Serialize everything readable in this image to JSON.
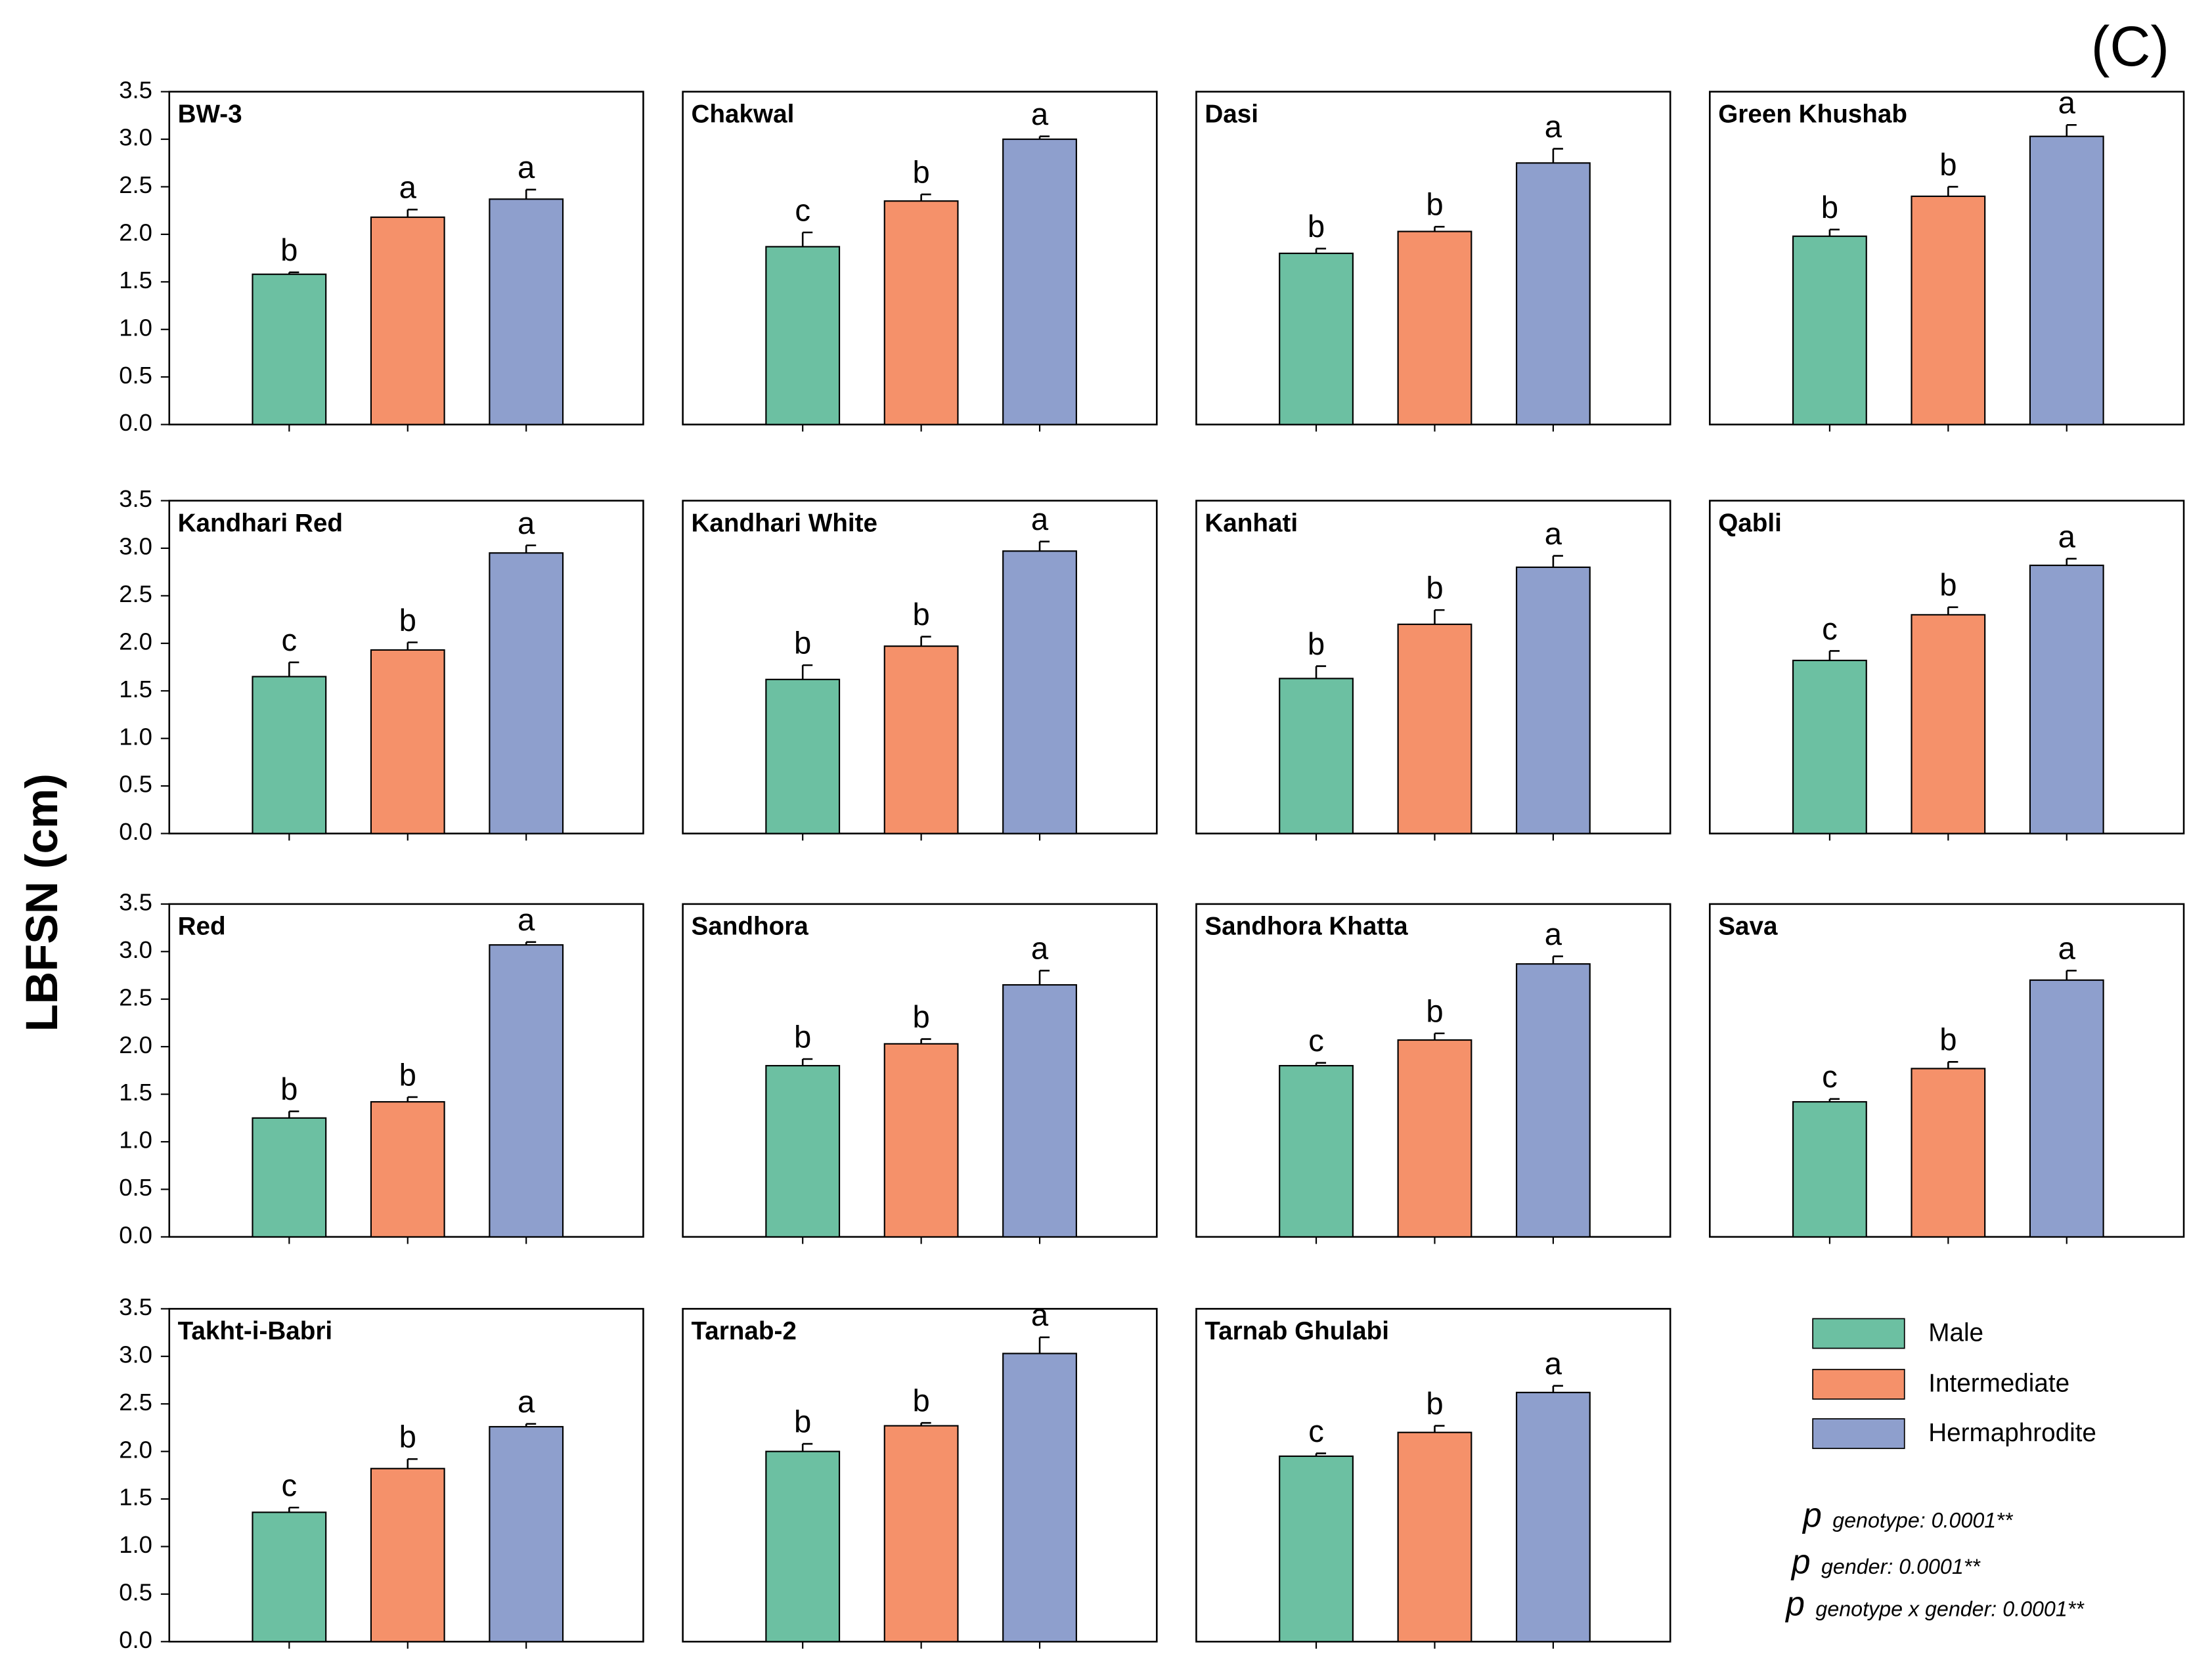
{
  "label": "(C)",
  "y_label": "LBFSN (cm)",
  "ylim": [
    0,
    3.5
  ],
  "yticks": [
    {
      "value": 0,
      "label": "0.0"
    },
    {
      "value": 0.5,
      "label": "0.5"
    },
    {
      "value": 1,
      "label": "1.0"
    },
    {
      "value": 1.5,
      "label": "1.5"
    },
    {
      "value": 2,
      "label": "2.0"
    },
    {
      "value": 2.5,
      "label": "2.5"
    },
    {
      "value": 3,
      "label": "3.0"
    },
    {
      "value": 3.5,
      "label": "3.5"
    }
  ],
  "legend": [
    {
      "name": "Male",
      "color": "#6cc0a2"
    },
    {
      "name": "Intermediate",
      "color": "#f5916a"
    },
    {
      "name": "Hermaphrodite",
      "color": "#8e9fcd"
    }
  ],
  "notes": [
    {
      "symbol": "p",
      "text": "genotype: 0.0001**"
    },
    {
      "symbol": "p",
      "text": "gender: 0.0001**"
    },
    {
      "symbol": "p",
      "text": "genotype x gender: 0.0001**"
    }
  ],
  "chart_data": [
    {
      "type": "bar",
      "title": "BW-3",
      "values": [
        1.58,
        2.18,
        2.37
      ],
      "errors": [
        0.02,
        0.08,
        0.1
      ],
      "letters": [
        "b",
        "a",
        "a"
      ]
    },
    {
      "type": "bar",
      "title": "Chakwal",
      "values": [
        1.87,
        2.35,
        3.0
      ],
      "errors": [
        0.15,
        0.07,
        0.03
      ],
      "letters": [
        "c",
        "b",
        "a"
      ]
    },
    {
      "type": "bar",
      "title": "Dasi",
      "values": [
        1.8,
        2.03,
        2.75
      ],
      "errors": [
        0.05,
        0.05,
        0.15
      ],
      "letters": [
        "b",
        "b",
        "a"
      ]
    },
    {
      "type": "bar",
      "title": "Green Khushab",
      "values": [
        1.98,
        2.4,
        3.03
      ],
      "errors": [
        0.07,
        0.1,
        0.12
      ],
      "letters": [
        "b",
        "b",
        "a"
      ]
    },
    {
      "type": "bar",
      "title": "Kandhari Red",
      "values": [
        1.65,
        1.93,
        2.95
      ],
      "errors": [
        0.15,
        0.08,
        0.08
      ],
      "letters": [
        "c",
        "b",
        "a"
      ]
    },
    {
      "type": "bar",
      "title": "Kandhari White",
      "values": [
        1.62,
        1.97,
        2.97
      ],
      "errors": [
        0.15,
        0.1,
        0.1
      ],
      "letters": [
        "b",
        "b",
        "a"
      ]
    },
    {
      "type": "bar",
      "title": "Kanhati",
      "values": [
        1.63,
        2.2,
        2.8
      ],
      "errors": [
        0.13,
        0.15,
        0.12
      ],
      "letters": [
        "b",
        "b",
        "a"
      ]
    },
    {
      "type": "bar",
      "title": "Qabli",
      "values": [
        1.82,
        2.3,
        2.82
      ],
      "errors": [
        0.1,
        0.08,
        0.07
      ],
      "letters": [
        "c",
        "b",
        "a"
      ]
    },
    {
      "type": "bar",
      "title": "Red",
      "values": [
        1.25,
        1.42,
        3.07
      ],
      "errors": [
        0.07,
        0.05,
        0.03
      ],
      "letters": [
        "b",
        "b",
        "a"
      ]
    },
    {
      "type": "bar",
      "title": "Sandhora",
      "values": [
        1.8,
        2.03,
        2.65
      ],
      "errors": [
        0.07,
        0.05,
        0.15
      ],
      "letters": [
        "b",
        "b",
        "a"
      ]
    },
    {
      "type": "bar",
      "title": "Sandhora Khatta",
      "values": [
        1.8,
        2.07,
        2.87
      ],
      "errors": [
        0.03,
        0.07,
        0.08
      ],
      "letters": [
        "c",
        "b",
        "a"
      ]
    },
    {
      "type": "bar",
      "title": "Sava",
      "values": [
        1.42,
        1.77,
        2.7
      ],
      "errors": [
        0.03,
        0.07,
        0.1
      ],
      "letters": [
        "c",
        "b",
        "a"
      ]
    },
    {
      "type": "bar",
      "title": "Takht-i-Babri",
      "values": [
        1.36,
        1.82,
        2.26
      ],
      "errors": [
        0.05,
        0.1,
        0.03
      ],
      "letters": [
        "c",
        "b",
        "a"
      ]
    },
    {
      "type": "bar",
      "title": "Tarnab-2",
      "values": [
        2.0,
        2.27,
        3.03
      ],
      "errors": [
        0.08,
        0.03,
        0.17
      ],
      "letters": [
        "b",
        "b",
        "a"
      ]
    },
    {
      "type": "bar",
      "title": "Tarnab Ghulabi",
      "values": [
        1.95,
        2.2,
        2.62
      ],
      "errors": [
        0.03,
        0.07,
        0.07
      ],
      "letters": [
        "c",
        "b",
        "a"
      ]
    }
  ]
}
